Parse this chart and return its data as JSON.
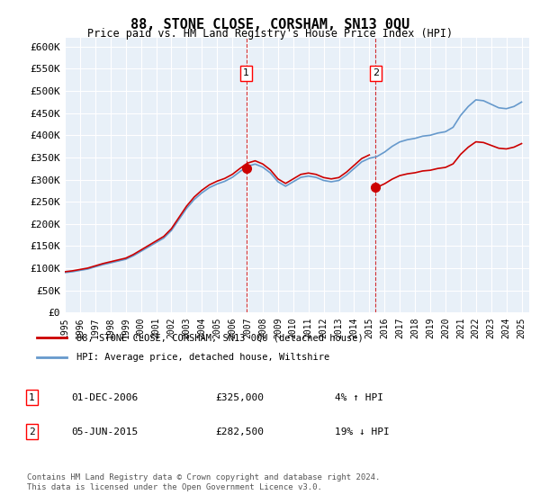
{
  "title": "88, STONE CLOSE, CORSHAM, SN13 0QU",
  "subtitle": "Price paid vs. HM Land Registry's House Price Index (HPI)",
  "ylabel_ticks": [
    "£0",
    "£50K",
    "£100K",
    "£150K",
    "£200K",
    "£250K",
    "£300K",
    "£350K",
    "£400K",
    "£450K",
    "£500K",
    "£550K",
    "£600K"
  ],
  "ylim": [
    0,
    620000
  ],
  "xlim_start": 1995.0,
  "xlim_end": 2025.5,
  "purchase1": {
    "date": "2006-12-01",
    "price": 325000,
    "label": "1",
    "x": 2006.92
  },
  "purchase2": {
    "date": "2015-06-05",
    "price": 282500,
    "label": "2",
    "x": 2015.42
  },
  "hpi_color": "#6699cc",
  "price_color": "#cc0000",
  "bg_color": "#e8f0f8",
  "legend_label1": "88, STONE CLOSE, CORSHAM, SN13 0QU (detached house)",
  "legend_label2": "HPI: Average price, detached house, Wiltshire",
  "table_row1": [
    "1",
    "01-DEC-2006",
    "£325,000",
    "4% ↑ HPI"
  ],
  "table_row2": [
    "2",
    "05-JUN-2015",
    "£282,500",
    "19% ↓ HPI"
  ],
  "footnote": "Contains HM Land Registry data © Crown copyright and database right 2024.\nThis data is licensed under the Open Government Licence v3.0."
}
